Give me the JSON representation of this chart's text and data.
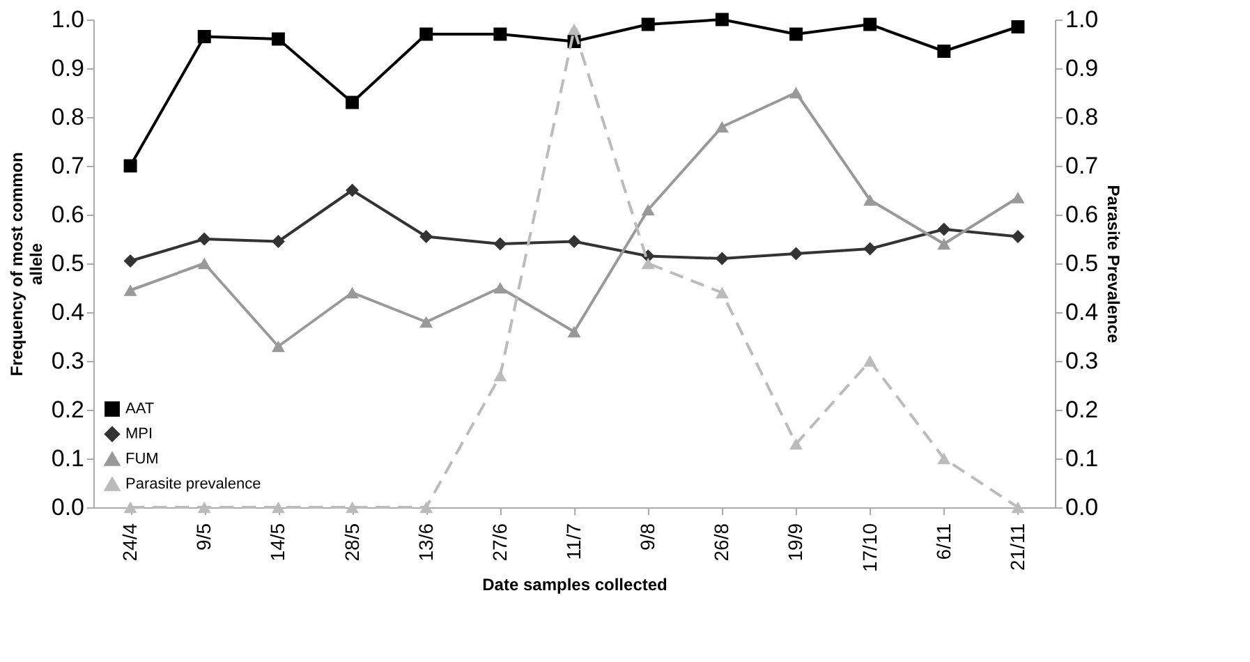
{
  "chart_data": {
    "type": "line",
    "xlabel": "Date samples collected",
    "ylabel": "Frequency of most common allele",
    "y2label": "Parasite Prevalence",
    "categories": [
      "24/4",
      "9/5",
      "14/5",
      "28/5",
      "13/6",
      "27/6",
      "11/7",
      "9/8",
      "26/8",
      "19/9",
      "17/10",
      "6/11",
      "21/11"
    ],
    "series": [
      {
        "name": "AAT",
        "color": "#000000",
        "marker": "square",
        "line_style": "solid",
        "values": [
          0.7,
          0.965,
          0.96,
          0.83,
          0.97,
          0.97,
          0.955,
          0.99,
          1.0,
          0.97,
          0.99,
          0.935,
          0.985
        ]
      },
      {
        "name": "MPI",
        "color": "#333333",
        "marker": "diamond",
        "line_style": "solid",
        "values": [
          0.505,
          0.55,
          0.545,
          0.65,
          0.555,
          0.54,
          0.545,
          0.515,
          0.51,
          0.52,
          0.53,
          0.57,
          0.555
        ]
      },
      {
        "name": "FUM",
        "color": "#999999",
        "marker": "triangle",
        "line_style": "solid",
        "values": [
          0.445,
          0.5,
          0.33,
          0.44,
          0.38,
          0.45,
          0.36,
          0.61,
          0.78,
          0.85,
          0.63,
          0.54,
          0.635
        ]
      },
      {
        "name": "Parasite prevalence",
        "color": "#bbbbbb",
        "marker": "triangle",
        "line_style": "dashed",
        "axis": "y2",
        "values": [
          0,
          0,
          0,
          0,
          0,
          0.27,
          0.98,
          0.5,
          0.44,
          0.13,
          0.3,
          0.1,
          0
        ]
      }
    ],
    "ylim": [
      0,
      1
    ],
    "yticks": [
      {
        "value": 0,
        "label": "0.0"
      },
      {
        "value": 0.1,
        "label": "0.1"
      },
      {
        "value": 0.2,
        "label": "0.2"
      },
      {
        "value": 0.3,
        "label": "0.3"
      },
      {
        "value": 0.4,
        "label": "0.4"
      },
      {
        "value": 0.5,
        "label": "0.5"
      },
      {
        "value": 0.6,
        "label": "0.6"
      },
      {
        "value": 0.7,
        "label": "0.7"
      },
      {
        "value": 0.8,
        "label": "0.8"
      },
      {
        "value": 0.9,
        "label": "0.9"
      },
      {
        "value": 1,
        "label": "1.0"
      }
    ],
    "y2lim": [
      0,
      1
    ],
    "y2ticks": [
      {
        "value": 0,
        "label": "0.0"
      },
      {
        "value": 0.1,
        "label": "0.1"
      },
      {
        "value": 0.2,
        "label": "0.2"
      },
      {
        "value": 0.3,
        "label": "0.3"
      },
      {
        "value": 0.4,
        "label": "0.4"
      },
      {
        "value": 0.5,
        "label": "0.5"
      },
      {
        "value": 0.6,
        "label": "0.6"
      },
      {
        "value": 0.7,
        "label": "0.7"
      },
      {
        "value": 0.8,
        "label": "0.8"
      },
      {
        "value": 0.9,
        "label": "0.9"
      },
      {
        "value": 1,
        "label": "1.0"
      }
    ],
    "grid": false,
    "legend": "bottom left"
  }
}
